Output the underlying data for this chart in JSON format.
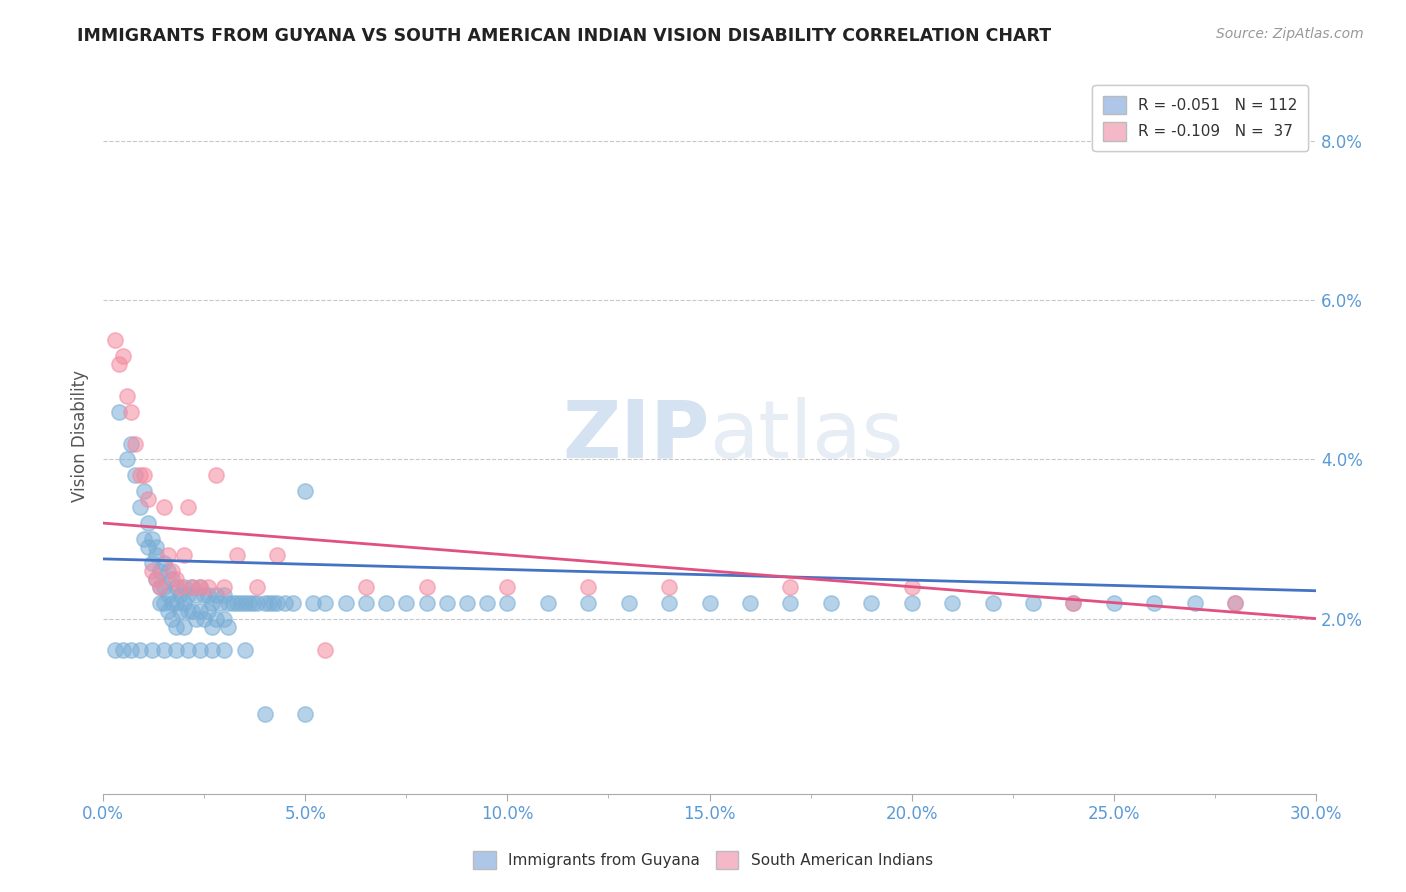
{
  "title": "IMMIGRANTS FROM GUYANA VS SOUTH AMERICAN INDIAN VISION DISABILITY CORRELATION CHART",
  "source_text": "Source: ZipAtlas.com",
  "ylabel": "Vision Disability",
  "xlim": [
    0.0,
    0.3
  ],
  "ylim": [
    -0.002,
    0.088
  ],
  "xtick_labels": [
    "0.0%",
    "",
    "5.0%",
    "",
    "10.0%",
    "",
    "15.0%",
    "",
    "20.0%",
    "",
    "25.0%",
    "",
    "30.0%"
  ],
  "xtick_values": [
    0.0,
    0.025,
    0.05,
    0.075,
    0.1,
    0.125,
    0.15,
    0.175,
    0.2,
    0.225,
    0.25,
    0.275,
    0.3
  ],
  "ytick_labels": [
    "2.0%",
    "4.0%",
    "6.0%",
    "8.0%"
  ],
  "ytick_values": [
    0.02,
    0.04,
    0.06,
    0.08
  ],
  "legend1_label": "R = -0.051   N = 112",
  "legend2_label": "R = -0.109   N =  37",
  "legend1_color": "#aec6e8",
  "legend2_color": "#f4b8c8",
  "scatter1_color": "#7aaed6",
  "scatter2_color": "#f48aa0",
  "line1_color": "#4472c4",
  "line2_color": "#e05080",
  "watermark": "ZIPatlas",
  "background_color": "#ffffff",
  "grid_color": "#c8c8c8",
  "title_color": "#222222",
  "axis_label_color": "#555555",
  "tick_color": "#5b9bd5",
  "scatter1_x": [
    0.004,
    0.006,
    0.007,
    0.008,
    0.009,
    0.01,
    0.01,
    0.011,
    0.011,
    0.012,
    0.012,
    0.013,
    0.013,
    0.013,
    0.014,
    0.014,
    0.014,
    0.015,
    0.015,
    0.015,
    0.016,
    0.016,
    0.016,
    0.017,
    0.017,
    0.017,
    0.018,
    0.018,
    0.018,
    0.019,
    0.019,
    0.02,
    0.02,
    0.02,
    0.021,
    0.021,
    0.022,
    0.022,
    0.023,
    0.023,
    0.024,
    0.024,
    0.025,
    0.025,
    0.026,
    0.026,
    0.027,
    0.027,
    0.028,
    0.028,
    0.029,
    0.03,
    0.03,
    0.031,
    0.031,
    0.032,
    0.033,
    0.034,
    0.035,
    0.036,
    0.037,
    0.038,
    0.04,
    0.041,
    0.042,
    0.043,
    0.045,
    0.047,
    0.05,
    0.052,
    0.055,
    0.06,
    0.065,
    0.07,
    0.075,
    0.08,
    0.085,
    0.09,
    0.095,
    0.1,
    0.11,
    0.12,
    0.13,
    0.14,
    0.15,
    0.16,
    0.17,
    0.18,
    0.19,
    0.2,
    0.21,
    0.22,
    0.23,
    0.24,
    0.25,
    0.26,
    0.27,
    0.28,
    0.003,
    0.005,
    0.007,
    0.009,
    0.012,
    0.015,
    0.018,
    0.021,
    0.024,
    0.027,
    0.03,
    0.035,
    0.04,
    0.05
  ],
  "scatter1_y": [
    0.046,
    0.04,
    0.042,
    0.038,
    0.034,
    0.036,
    0.03,
    0.032,
    0.029,
    0.03,
    0.027,
    0.029,
    0.025,
    0.028,
    0.026,
    0.024,
    0.022,
    0.027,
    0.024,
    0.022,
    0.026,
    0.023,
    0.021,
    0.025,
    0.022,
    0.02,
    0.024,
    0.022,
    0.019,
    0.023,
    0.021,
    0.024,
    0.022,
    0.019,
    0.023,
    0.021,
    0.024,
    0.021,
    0.023,
    0.02,
    0.024,
    0.021,
    0.023,
    0.02,
    0.023,
    0.021,
    0.022,
    0.019,
    0.023,
    0.02,
    0.022,
    0.023,
    0.02,
    0.022,
    0.019,
    0.022,
    0.022,
    0.022,
    0.022,
    0.022,
    0.022,
    0.022,
    0.022,
    0.022,
    0.022,
    0.022,
    0.022,
    0.022,
    0.036,
    0.022,
    0.022,
    0.022,
    0.022,
    0.022,
    0.022,
    0.022,
    0.022,
    0.022,
    0.022,
    0.022,
    0.022,
    0.022,
    0.022,
    0.022,
    0.022,
    0.022,
    0.022,
    0.022,
    0.022,
    0.022,
    0.022,
    0.022,
    0.022,
    0.022,
    0.022,
    0.022,
    0.022,
    0.022,
    0.016,
    0.016,
    0.016,
    0.016,
    0.016,
    0.016,
    0.016,
    0.016,
    0.016,
    0.016,
    0.016,
    0.016,
    0.008,
    0.008
  ],
  "scatter2_x": [
    0.003,
    0.004,
    0.005,
    0.006,
    0.007,
    0.008,
    0.009,
    0.01,
    0.011,
    0.012,
    0.013,
    0.014,
    0.015,
    0.016,
    0.017,
    0.018,
    0.019,
    0.02,
    0.021,
    0.022,
    0.024,
    0.026,
    0.028,
    0.03,
    0.033,
    0.038,
    0.043,
    0.055,
    0.065,
    0.08,
    0.1,
    0.12,
    0.14,
    0.17,
    0.2,
    0.24,
    0.28
  ],
  "scatter2_y": [
    0.055,
    0.052,
    0.053,
    0.048,
    0.046,
    0.042,
    0.038,
    0.038,
    0.035,
    0.026,
    0.025,
    0.024,
    0.034,
    0.028,
    0.026,
    0.025,
    0.024,
    0.028,
    0.034,
    0.024,
    0.024,
    0.024,
    0.038,
    0.024,
    0.028,
    0.024,
    0.028,
    0.016,
    0.024,
    0.024,
    0.024,
    0.024,
    0.024,
    0.024,
    0.024,
    0.022,
    0.022
  ],
  "line1_x": [
    0.0,
    0.3
  ],
  "line1_y": [
    0.0275,
    0.0235
  ],
  "line2_x": [
    0.0,
    0.3
  ],
  "line2_y": [
    0.032,
    0.02
  ]
}
